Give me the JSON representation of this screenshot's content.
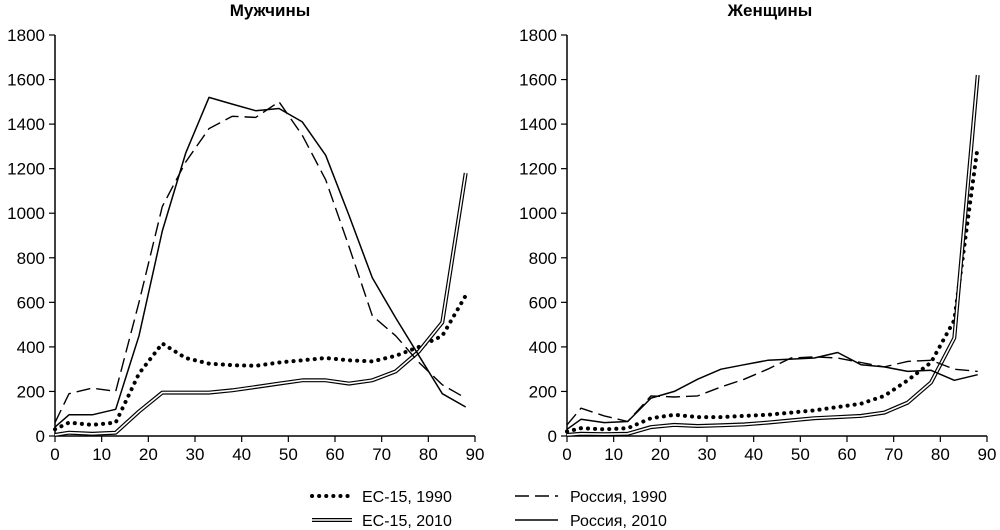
{
  "chart_data": [
    {
      "type": "line",
      "title": "Мужчины",
      "xlim": [
        0,
        90
      ],
      "ylim": [
        0,
        1800
      ],
      "x_ticks": [
        "0",
        "10",
        "20",
        "30",
        "40",
        "50",
        "60",
        "70",
        "80",
        "90"
      ],
      "y_ticks": [
        "0",
        "200",
        "400",
        "600",
        "800",
        "1000",
        "1200",
        "1400",
        "1600",
        "1800"
      ],
      "grid": false,
      "series": [
        {
          "name": "ЕС-15, 1990",
          "style": "dotted",
          "points": [
            [
              0,
              30
            ],
            [
              3,
              60
            ],
            [
              8,
              50
            ],
            [
              13,
              60
            ],
            [
              18,
              280
            ],
            [
              23,
              415
            ],
            [
              28,
              350
            ],
            [
              33,
              325
            ],
            [
              38,
              318
            ],
            [
              43,
              315
            ],
            [
              48,
              330
            ],
            [
              53,
              340
            ],
            [
              58,
              350
            ],
            [
              63,
              340
            ],
            [
              68,
              335
            ],
            [
              73,
              360
            ],
            [
              78,
              400
            ],
            [
              83,
              450
            ],
            [
              88,
              630
            ]
          ]
        },
        {
          "name": "ЕС-15, 2010",
          "style": "double",
          "points": [
            [
              0,
              5
            ],
            [
              3,
              15
            ],
            [
              8,
              10
            ],
            [
              13,
              15
            ],
            [
              18,
              110
            ],
            [
              23,
              195
            ],
            [
              28,
              195
            ],
            [
              33,
              195
            ],
            [
              38,
              205
            ],
            [
              43,
              220
            ],
            [
              48,
              235
            ],
            [
              53,
              250
            ],
            [
              58,
              250
            ],
            [
              63,
              235
            ],
            [
              68,
              250
            ],
            [
              73,
              290
            ],
            [
              78,
              380
            ],
            [
              83,
              510
            ],
            [
              88,
              1180
            ]
          ]
        },
        {
          "name": "Россия, 1990",
          "style": "dashed",
          "points": [
            [
              0,
              60
            ],
            [
              3,
              190
            ],
            [
              8,
              215
            ],
            [
              13,
              200
            ],
            [
              18,
              600
            ],
            [
              23,
              1030
            ],
            [
              28,
              1230
            ],
            [
              33,
              1380
            ],
            [
              38,
              1435
            ],
            [
              43,
              1430
            ],
            [
              48,
              1500
            ],
            [
              53,
              1350
            ],
            [
              58,
              1150
            ],
            [
              63,
              850
            ],
            [
              68,
              540
            ],
            [
              73,
              450
            ],
            [
              78,
              330
            ],
            [
              83,
              230
            ],
            [
              88,
              170
            ]
          ]
        },
        {
          "name": "Россия, 2010",
          "style": "solid",
          "points": [
            [
              0,
              40
            ],
            [
              3,
              95
            ],
            [
              8,
              95
            ],
            [
              13,
              120
            ],
            [
              18,
              450
            ],
            [
              23,
              920
            ],
            [
              28,
              1270
            ],
            [
              33,
              1520
            ],
            [
              38,
              1490
            ],
            [
              43,
              1460
            ],
            [
              48,
              1470
            ],
            [
              53,
              1410
            ],
            [
              58,
              1260
            ],
            [
              63,
              990
            ],
            [
              68,
              710
            ],
            [
              73,
              530
            ],
            [
              78,
              360
            ],
            [
              83,
              190
            ],
            [
              88,
              130
            ]
          ]
        }
      ]
    },
    {
      "type": "line",
      "title": "Женщины",
      "xlim": [
        0,
        90
      ],
      "ylim": [
        0,
        1800
      ],
      "x_ticks": [
        "0",
        "10",
        "20",
        "30",
        "40",
        "50",
        "60",
        "70",
        "80",
        "90"
      ],
      "y_ticks": [
        "0",
        "200",
        "400",
        "600",
        "800",
        "1000",
        "1200",
        "1400",
        "1600",
        "1800"
      ],
      "grid": false,
      "series": [
        {
          "name": "ЕС-15, 1990",
          "style": "dotted",
          "points": [
            [
              0,
              20
            ],
            [
              3,
              35
            ],
            [
              8,
              30
            ],
            [
              13,
              35
            ],
            [
              18,
              80
            ],
            [
              23,
              95
            ],
            [
              28,
              85
            ],
            [
              33,
              85
            ],
            [
              38,
              90
            ],
            [
              43,
              95
            ],
            [
              48,
              105
            ],
            [
              53,
              115
            ],
            [
              58,
              130
            ],
            [
              63,
              145
            ],
            [
              68,
              180
            ],
            [
              73,
              250
            ],
            [
              78,
              330
            ],
            [
              83,
              520
            ],
            [
              88,
              1300
            ]
          ]
        },
        {
          "name": "ЕС-15, 2010",
          "style": "double",
          "points": [
            [
              0,
              5
            ],
            [
              3,
              10
            ],
            [
              8,
              8
            ],
            [
              13,
              10
            ],
            [
              18,
              40
            ],
            [
              23,
              50
            ],
            [
              28,
              45
            ],
            [
              33,
              48
            ],
            [
              38,
              52
            ],
            [
              43,
              60
            ],
            [
              48,
              70
            ],
            [
              53,
              80
            ],
            [
              58,
              85
            ],
            [
              63,
              90
            ],
            [
              68,
              105
            ],
            [
              73,
              150
            ],
            [
              78,
              240
            ],
            [
              83,
              440
            ],
            [
              88,
              1620
            ]
          ]
        },
        {
          "name": "Россия, 1990",
          "style": "dashed",
          "points": [
            [
              0,
              50
            ],
            [
              3,
              125
            ],
            [
              8,
              90
            ],
            [
              13,
              65
            ],
            [
              18,
              180
            ],
            [
              23,
              175
            ],
            [
              28,
              180
            ],
            [
              33,
              220
            ],
            [
              38,
              255
            ],
            [
              43,
              300
            ],
            [
              48,
              350
            ],
            [
              53,
              355
            ],
            [
              58,
              350
            ],
            [
              63,
              330
            ],
            [
              68,
              310
            ],
            [
              73,
              335
            ],
            [
              78,
              340
            ],
            [
              83,
              300
            ],
            [
              88,
              290
            ]
          ]
        },
        {
          "name": "Россия, 2010",
          "style": "solid",
          "points": [
            [
              0,
              30
            ],
            [
              3,
              75
            ],
            [
              8,
              60
            ],
            [
              13,
              65
            ],
            [
              18,
              170
            ],
            [
              23,
              200
            ],
            [
              28,
              255
            ],
            [
              33,
              300
            ],
            [
              38,
              320
            ],
            [
              43,
              340
            ],
            [
              48,
              345
            ],
            [
              53,
              350
            ],
            [
              58,
              375
            ],
            [
              63,
              320
            ],
            [
              68,
              310
            ],
            [
              73,
              290
            ],
            [
              78,
              295
            ],
            [
              83,
              250
            ],
            [
              88,
              275
            ]
          ]
        }
      ]
    }
  ],
  "legend": [
    {
      "label": "ЕС-15, 1990",
      "style": "dotted"
    },
    {
      "label": "Россия, 1990",
      "style": "dashed"
    },
    {
      "label": "ЕС-15, 2010",
      "style": "double"
    },
    {
      "label": "Россия, 2010",
      "style": "solid"
    }
  ]
}
